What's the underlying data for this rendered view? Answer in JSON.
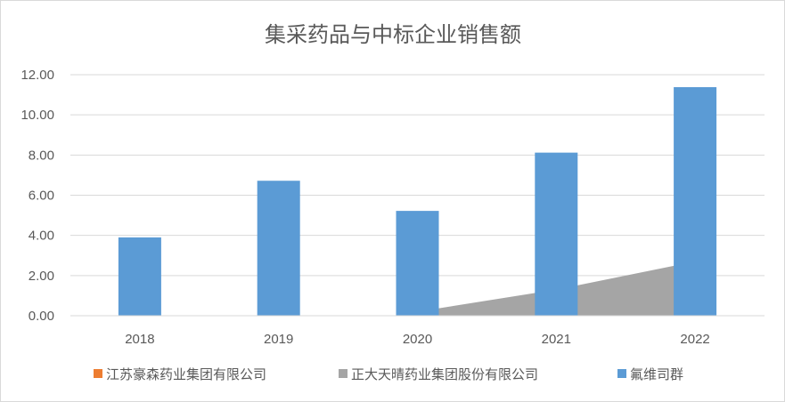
{
  "chart_data": {
    "type": "bar",
    "title": "集采药品与中标企业销售额",
    "categories": [
      "2018",
      "2019",
      "2020",
      "2021",
      "2022"
    ],
    "ylim": [
      0,
      12
    ],
    "yticks": [
      "0.00",
      "2.00",
      "4.00",
      "6.00",
      "8.00",
      "10.00",
      "12.00"
    ],
    "grid": true,
    "legend_position": "bottom",
    "series": [
      {
        "name": "江苏豪森药业集团有限公司",
        "type": "line",
        "color": "#ED7D31",
        "values": [
          null,
          null,
          null,
          null,
          null
        ]
      },
      {
        "name": "正大天晴药业集团股份有限公司",
        "type": "area",
        "color": "#A5A5A5",
        "values": [
          null,
          null,
          0.2,
          1.3,
          2.7
        ]
      },
      {
        "name": "氟维司群",
        "type": "bar",
        "color": "#5B9BD5",
        "values": [
          3.9,
          6.72,
          5.22,
          8.12,
          11.38
        ]
      }
    ]
  }
}
